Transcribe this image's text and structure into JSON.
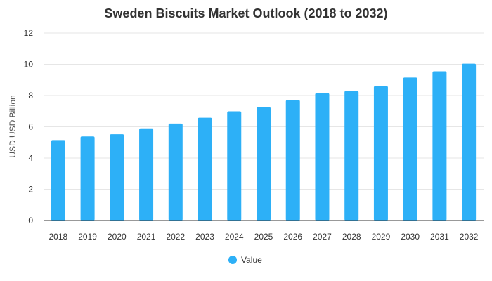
{
  "chart_data": {
    "type": "bar",
    "title": "Sweden Biscuits Market Outlook (2018 to 2032)",
    "xlabel": "",
    "ylabel": "USD USD Billion",
    "ylim": [
      0,
      12
    ],
    "yticks": [
      0,
      2,
      4,
      6,
      8,
      10,
      12
    ],
    "categories": [
      "2018",
      "2019",
      "2020",
      "2021",
      "2022",
      "2023",
      "2024",
      "2025",
      "2026",
      "2027",
      "2028",
      "2029",
      "2030",
      "2031",
      "2032"
    ],
    "series": [
      {
        "name": "Value",
        "color": "#2db0f7",
        "values": [
          5.15,
          5.38,
          5.52,
          5.9,
          6.21,
          6.58,
          6.99,
          7.26,
          7.71,
          8.15,
          8.29,
          8.6,
          9.15,
          9.55,
          10.04
        ]
      }
    ],
    "grid": true,
    "legend_position": "bottom-center"
  }
}
